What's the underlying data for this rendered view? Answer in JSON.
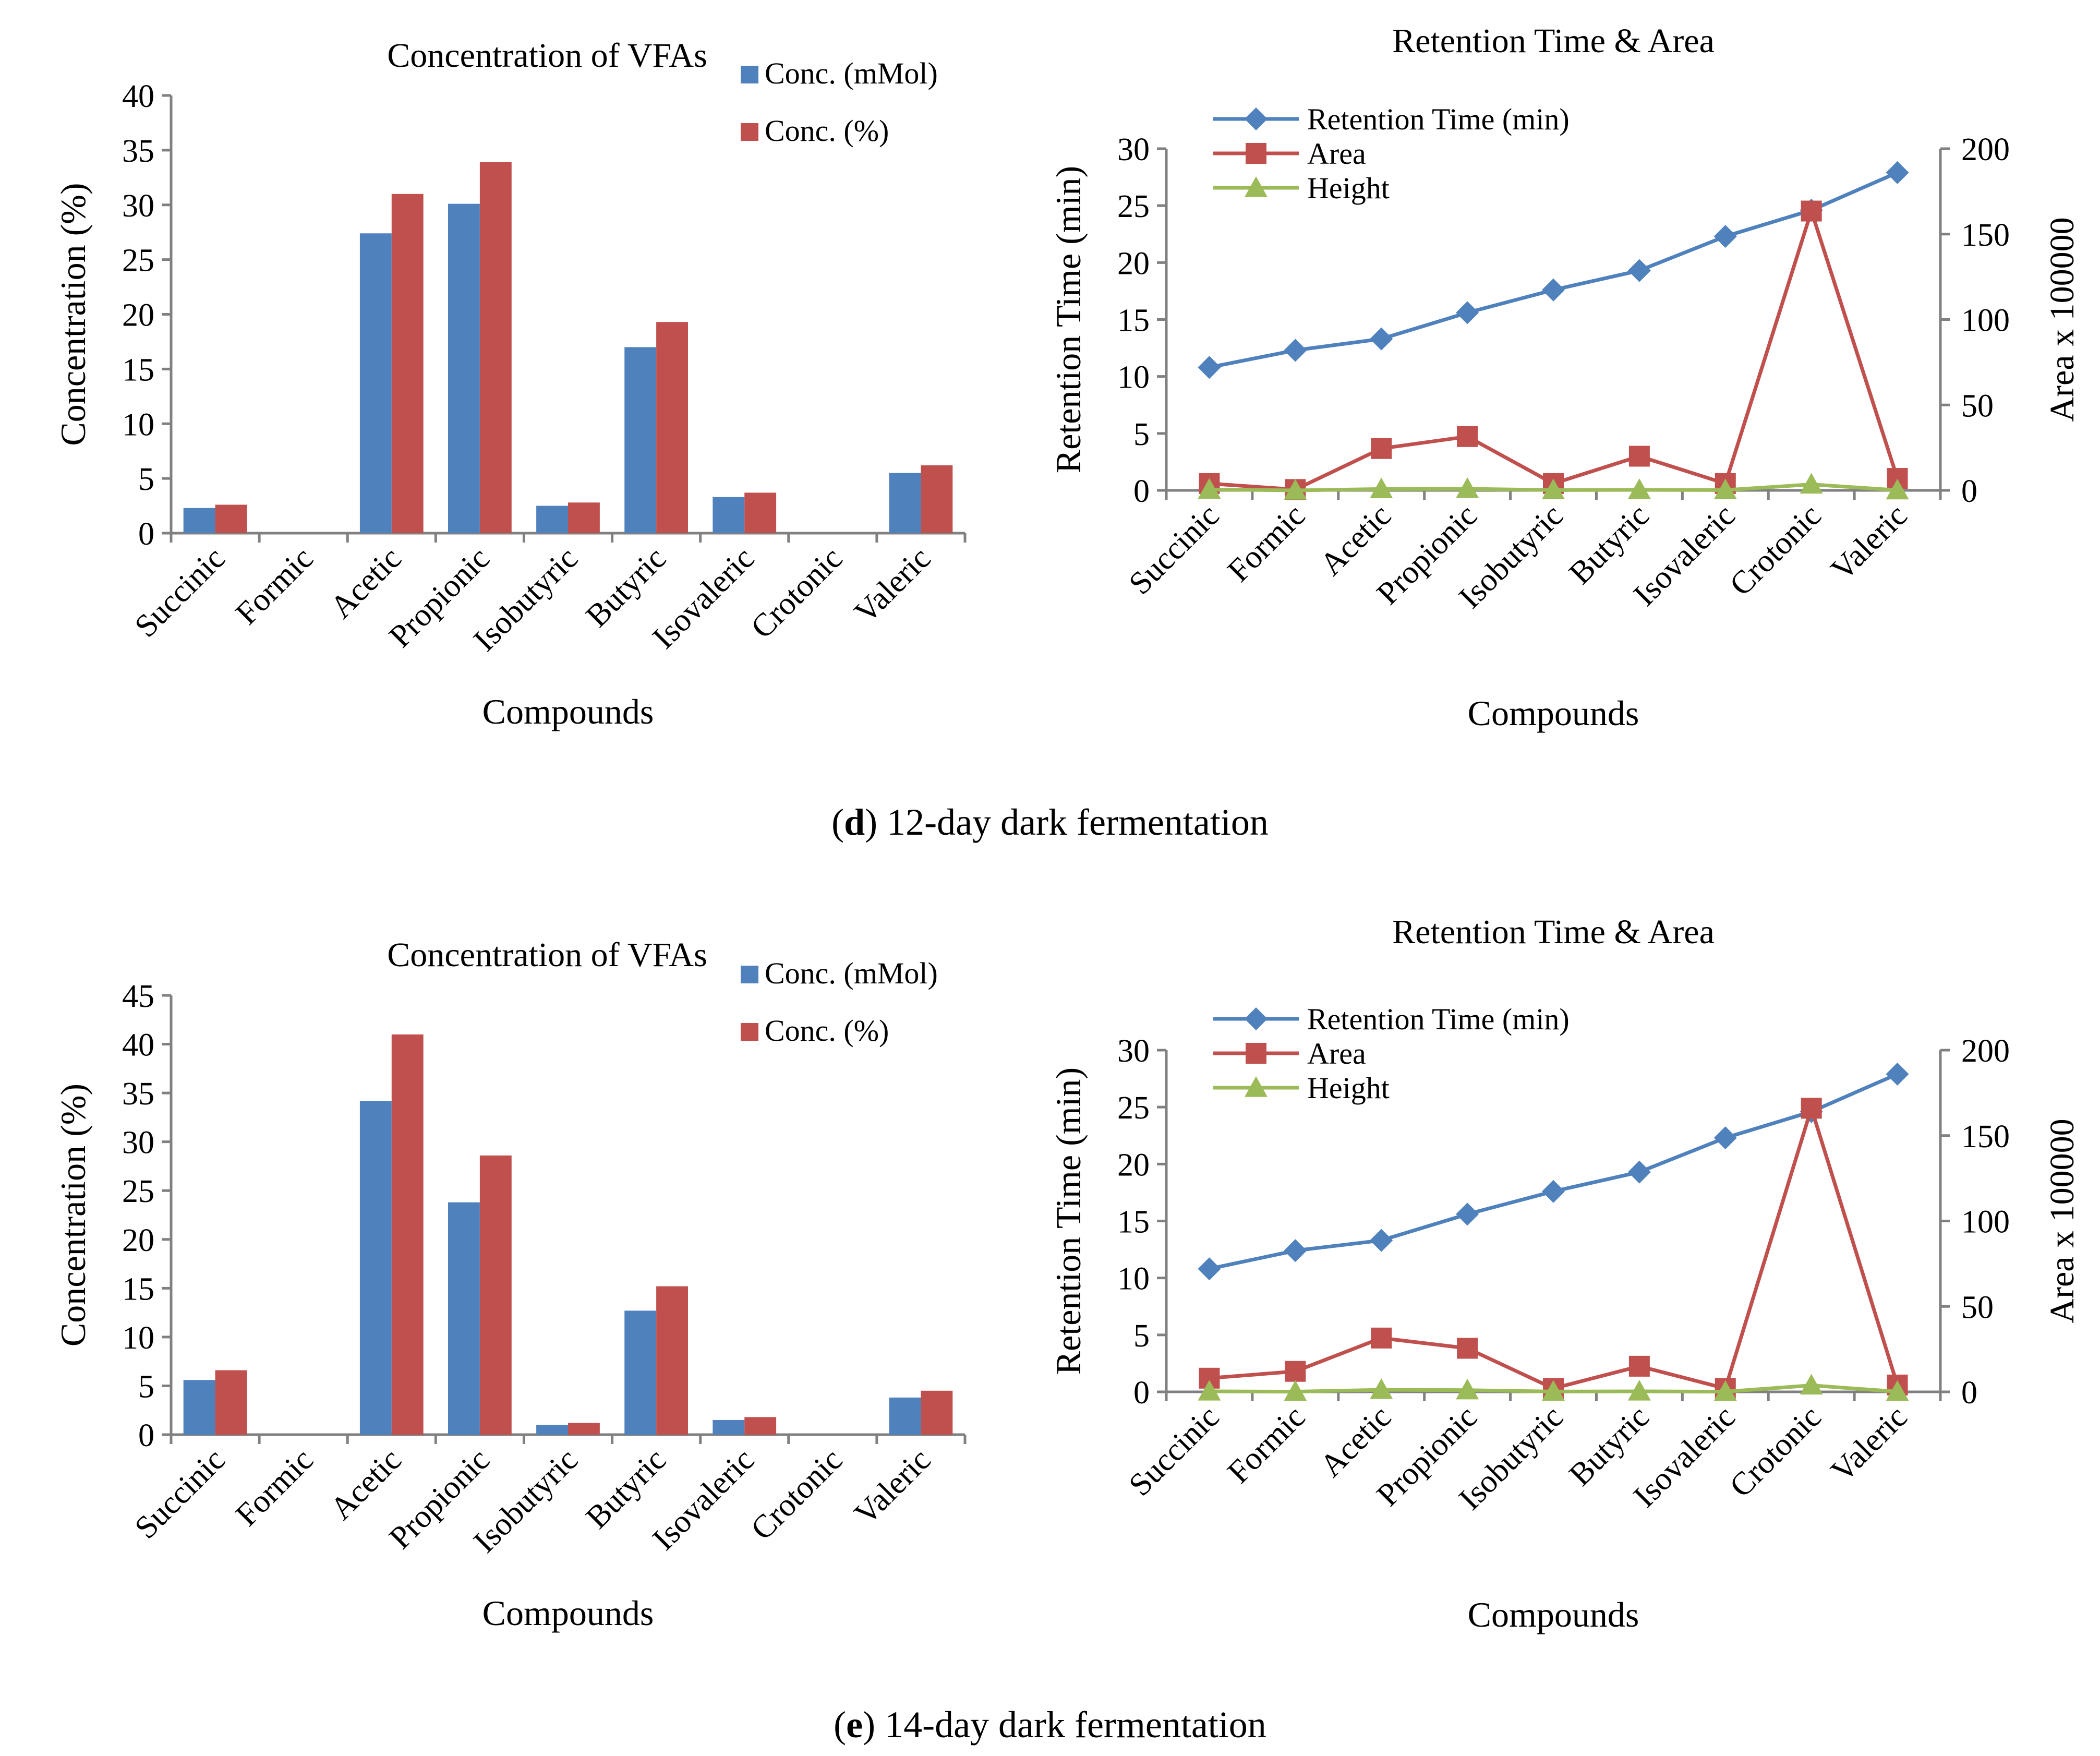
{
  "figure": {
    "panels": [
      {
        "label": "d",
        "caption": ") 12-day dark fermentation",
        "open_paren": "("
      },
      {
        "label": "e",
        "caption": ") 14-day dark fermentation",
        "open_paren": "("
      }
    ]
  },
  "colors": {
    "blue": "#4F81BD",
    "red": "#C0504D",
    "green": "#9BBB59",
    "axis": "#808080"
  },
  "chart_data": [
    {
      "id": "d-bar",
      "type": "bar",
      "title": "Concentration of VFAs",
      "xlabel": "Compounds",
      "ylabel": "Concentration (%)",
      "ylim": [
        0,
        40
      ],
      "yticks": [
        0,
        5,
        10,
        15,
        20,
        25,
        30,
        35,
        40
      ],
      "legend_position": "top-right",
      "categories": [
        "Succinic",
        "Formic",
        "Acetic",
        "Propionic",
        "Isobutyric",
        "Butyric",
        "Isovaleric",
        "Crotonic",
        "Valeric"
      ],
      "series": [
        {
          "name": "Conc. (mMol)",
          "color": "#4F81BD",
          "values": [
            2.3,
            0,
            27.4,
            30.1,
            2.5,
            17.0,
            3.3,
            0,
            5.5
          ]
        },
        {
          "name": "Conc. (%)",
          "color": "#C0504D",
          "values": [
            2.6,
            0,
            31.0,
            33.9,
            2.8,
            19.3,
            3.7,
            0,
            6.2
          ]
        }
      ]
    },
    {
      "id": "d-line",
      "type": "line",
      "title": "Retention Time & Area",
      "xlabel": "Compounds",
      "ylabel": "Retention Time (min)",
      "y2label": "Area x 100000",
      "ylim": [
        0,
        30
      ],
      "yticks": [
        0,
        5,
        10,
        15,
        20,
        25,
        30
      ],
      "y2lim": [
        0,
        200
      ],
      "y2ticks": [
        0,
        50,
        100,
        150,
        200
      ],
      "legend_position": "top-left",
      "categories": [
        "Succinic",
        "Formic",
        "Acetic",
        "Propionic",
        "Isobutyric",
        "Butyric",
        "Isovaleric",
        "Crotonic",
        "Valeric"
      ],
      "series": [
        {
          "name": "Retention Time (min)",
          "color": "#4F81BD",
          "marker": "diamond",
          "axis": "left",
          "values": [
            10.8,
            12.3,
            13.3,
            15.6,
            17.6,
            19.3,
            22.3,
            24.6,
            27.9
          ]
        },
        {
          "name": "Area",
          "color": "#C0504D",
          "marker": "square",
          "axis": "right",
          "values": [
            4,
            0.5,
            24.5,
            31.5,
            4,
            20,
            4,
            163.5,
            7
          ]
        },
        {
          "name": "Height",
          "color": "#9BBB59",
          "marker": "triangle",
          "axis": "right",
          "values": [
            0.5,
            0,
            0.8,
            0.9,
            0.2,
            0.3,
            0.2,
            3.5,
            0.1
          ]
        }
      ]
    },
    {
      "id": "e-bar",
      "type": "bar",
      "title": "Concentration of VFAs",
      "xlabel": "Compounds",
      "ylabel": "Concentration (%)",
      "ylim": [
        0,
        45
      ],
      "yticks": [
        0,
        5,
        10,
        15,
        20,
        25,
        30,
        35,
        40,
        45
      ],
      "legend_position": "top-right",
      "categories": [
        "Succinic",
        "Formic",
        "Acetic",
        "Propionic",
        "Isobutyric",
        "Butyric",
        "Isovaleric",
        "Crotonic",
        "Valeric"
      ],
      "series": [
        {
          "name": "Conc. (mMol)",
          "color": "#4F81BD",
          "values": [
            5.6,
            0,
            34.2,
            23.8,
            1.0,
            12.7,
            1.5,
            0,
            3.8
          ]
        },
        {
          "name": "Conc. (%)",
          "color": "#C0504D",
          "values": [
            6.6,
            0,
            41.0,
            28.6,
            1.2,
            15.2,
            1.8,
            0,
            4.5
          ]
        }
      ]
    },
    {
      "id": "e-line",
      "type": "line",
      "title": "Retention Time & Area",
      "xlabel": "Compounds",
      "ylabel": "Retention Time (min)",
      "y2label": "Area x 100000",
      "ylim": [
        0,
        30
      ],
      "yticks": [
        0,
        5,
        10,
        15,
        20,
        25,
        30
      ],
      "y2lim": [
        0,
        200
      ],
      "y2ticks": [
        0,
        50,
        100,
        150,
        200
      ],
      "legend_position": "top-left",
      "categories": [
        "Succinic",
        "Formic",
        "Acetic",
        "Propionic",
        "Isobutyric",
        "Butyric",
        "Isovaleric",
        "Crotonic",
        "Valeric"
      ],
      "series": [
        {
          "name": "Retention Time (min)",
          "color": "#4F81BD",
          "marker": "diamond",
          "axis": "left",
          "values": [
            10.8,
            12.4,
            13.3,
            15.6,
            17.6,
            19.3,
            22.3,
            24.6,
            27.9
          ]
        },
        {
          "name": "Area",
          "color": "#C0504D",
          "marker": "square",
          "axis": "right",
          "values": [
            8,
            12,
            31.5,
            25.5,
            2,
            15,
            2,
            166,
            4
          ]
        },
        {
          "name": "Height",
          "color": "#9BBB59",
          "marker": "triangle",
          "axis": "right",
          "values": [
            0.3,
            0.1,
            1.2,
            1.0,
            0.2,
            0.3,
            0.1,
            3.8,
            0.1
          ]
        }
      ]
    }
  ]
}
